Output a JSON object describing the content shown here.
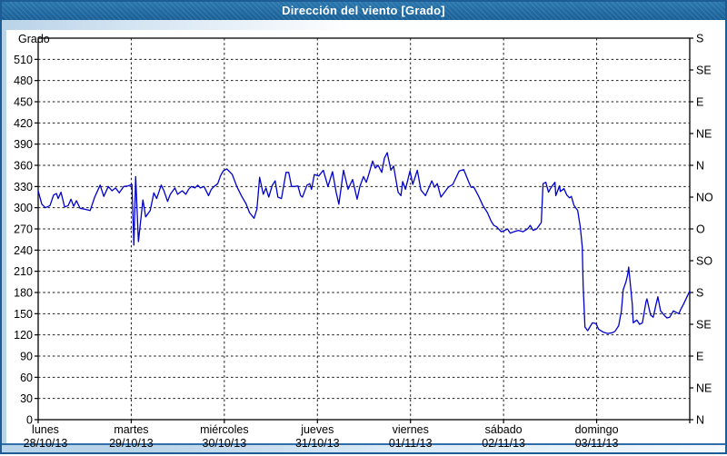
{
  "window": {
    "title": "Dirección del viento [Grado]"
  },
  "colors": {
    "title_bar_top": "#2b77ad",
    "title_bar_bottom": "#1a6097",
    "frame_light_blue": "#b9d3e8",
    "window_border": "#1d5c95",
    "plot_border": "#000000",
    "grid": "#1a1a1a",
    "series_line": "#0000cc"
  },
  "chart_data": {
    "type": "line",
    "title": "Dirección del viento [Grado]",
    "ylabel": "Grado",
    "ylim": [
      0,
      540
    ],
    "y_tick_step": 30,
    "y_left_tick_labels": [
      "0",
      "30",
      "60",
      "90",
      "120",
      "150",
      "180",
      "210",
      "240",
      "270",
      "300",
      "330",
      "360",
      "390",
      "420",
      "450",
      "480",
      "510"
    ],
    "grid": "dashed horizontal every 30°, dashed vertical at each day boundary",
    "legend_position": "none",
    "compass_ticks": [
      {
        "deg": 540,
        "label": "S"
      },
      {
        "deg": 495,
        "label": "SE"
      },
      {
        "deg": 450,
        "label": "E"
      },
      {
        "deg": 405,
        "label": "NE"
      },
      {
        "deg": 360,
        "label": "N"
      },
      {
        "deg": 315,
        "label": "NO"
      },
      {
        "deg": 270,
        "label": "O"
      },
      {
        "deg": 225,
        "label": "SO"
      },
      {
        "deg": 180,
        "label": "S"
      },
      {
        "deg": 135,
        "label": "SE"
      },
      {
        "deg": 90,
        "label": "E"
      },
      {
        "deg": 45,
        "label": "NE"
      },
      {
        "deg": 0,
        "label": "N"
      }
    ],
    "x_days": [
      {
        "name": "lunes",
        "date": "28/10/13"
      },
      {
        "name": "martes",
        "date": "29/10/13"
      },
      {
        "name": "miércoles",
        "date": "30/10/13"
      },
      {
        "name": "jueves",
        "date": "31/10/13"
      },
      {
        "name": "viernes",
        "date": "01/11/13"
      },
      {
        "name": "sábado",
        "date": "02/11/13"
      },
      {
        "name": "domingo",
        "date": "03/11/13"
      }
    ],
    "series": [
      {
        "name": "Dirección del viento",
        "color": "#0000cc",
        "x_unit": "days from lunes 28/10/13 00:00",
        "y_unit": "Grado",
        "points": [
          [
            0,
            324
          ],
          [
            0.039,
            305
          ],
          [
            0.078,
            300
          ],
          [
            0.127,
            303
          ],
          [
            0.166,
            318
          ],
          [
            0.196,
            320
          ],
          [
            0.215,
            313
          ],
          [
            0.245,
            322
          ],
          [
            0.284,
            301
          ],
          [
            0.323,
            303
          ],
          [
            0.352,
            312
          ],
          [
            0.382,
            302
          ],
          [
            0.411,
            310
          ],
          [
            0.45,
            299
          ],
          [
            0.499,
            298
          ],
          [
            0.558,
            296
          ],
          [
            0.607,
            315
          ],
          [
            0.666,
            332
          ],
          [
            0.705,
            316
          ],
          [
            0.754,
            330
          ],
          [
            0.793,
            324
          ],
          [
            0.832,
            328
          ],
          [
            0.871,
            321
          ],
          [
            0.92,
            330
          ],
          [
            0.969,
            331
          ],
          [
            1.008,
            333
          ],
          [
            1.028,
            247
          ],
          [
            1.048,
            344
          ],
          [
            1.077,
            252
          ],
          [
            1.126,
            311
          ],
          [
            1.155,
            287
          ],
          [
            1.204,
            296
          ],
          [
            1.243,
            321
          ],
          [
            1.273,
            313
          ],
          [
            1.322,
            332
          ],
          [
            1.351,
            324
          ],
          [
            1.39,
            309
          ],
          [
            1.42,
            319
          ],
          [
            1.469,
            328
          ],
          [
            1.498,
            319
          ],
          [
            1.547,
            324
          ],
          [
            1.586,
            319
          ],
          [
            1.616,
            326
          ],
          [
            1.645,
            330
          ],
          [
            1.684,
            328
          ],
          [
            1.714,
            332
          ],
          [
            1.743,
            328
          ],
          [
            1.782,
            330
          ],
          [
            1.831,
            317
          ],
          [
            1.86,
            326
          ],
          [
            1.89,
            330
          ],
          [
            1.929,
            334
          ],
          [
            1.958,
            345
          ],
          [
            1.988,
            352
          ],
          [
            2.027,
            355
          ],
          [
            2.085,
            347
          ],
          [
            2.134,
            330
          ],
          [
            2.183,
            317
          ],
          [
            2.232,
            306
          ],
          [
            2.271,
            293
          ],
          [
            2.32,
            285
          ],
          [
            2.35,
            298
          ],
          [
            2.379,
            343
          ],
          [
            2.418,
            319
          ],
          [
            2.448,
            328
          ],
          [
            2.477,
            315
          ],
          [
            2.516,
            332
          ],
          [
            2.546,
            338
          ],
          [
            2.575,
            315
          ],
          [
            2.614,
            313
          ],
          [
            2.663,
            350
          ],
          [
            2.692,
            350
          ],
          [
            2.722,
            330
          ],
          [
            2.761,
            330
          ],
          [
            2.79,
            331
          ],
          [
            2.82,
            317
          ],
          [
            2.839,
            315
          ],
          [
            2.888,
            332
          ],
          [
            2.918,
            334
          ],
          [
            2.937,
            326
          ],
          [
            2.967,
            347
          ],
          [
            3.015,
            345
          ],
          [
            3.064,
            353
          ],
          [
            3.113,
            330
          ],
          [
            3.162,
            351
          ],
          [
            3.201,
            322
          ],
          [
            3.231,
            305
          ],
          [
            3.28,
            353
          ],
          [
            3.329,
            326
          ],
          [
            3.378,
            340
          ],
          [
            3.427,
            312
          ],
          [
            3.456,
            330
          ],
          [
            3.495,
            344
          ],
          [
            3.525,
            336
          ],
          [
            3.554,
            348
          ],
          [
            3.593,
            366
          ],
          [
            3.622,
            356
          ],
          [
            3.652,
            360
          ],
          [
            3.691,
            350
          ],
          [
            3.72,
            370
          ],
          [
            3.75,
            378
          ],
          [
            3.789,
            353
          ],
          [
            3.818,
            359
          ],
          [
            3.867,
            322
          ],
          [
            3.897,
            317
          ],
          [
            3.916,
            337
          ],
          [
            3.946,
            326
          ],
          [
            3.995,
            352
          ],
          [
            4.024,
            333
          ],
          [
            4.073,
            353
          ],
          [
            4.112,
            325
          ],
          [
            4.161,
            317
          ],
          [
            4.229,
            338
          ],
          [
            4.259,
            329
          ],
          [
            4.288,
            334
          ],
          [
            4.327,
            315
          ],
          [
            4.406,
            329
          ],
          [
            4.455,
            333
          ],
          [
            4.523,
            352
          ],
          [
            4.572,
            354
          ],
          [
            4.621,
            338
          ],
          [
            4.65,
            329
          ],
          [
            4.68,
            329
          ],
          [
            4.729,
            317
          ],
          [
            4.778,
            303
          ],
          [
            4.827,
            293
          ],
          [
            4.866,
            281
          ],
          [
            4.895,
            275
          ],
          [
            4.925,
            273
          ],
          [
            4.974,
            266
          ],
          [
            5.013,
            268
          ],
          [
            5.042,
            270
          ],
          [
            5.072,
            264
          ],
          [
            5.111,
            266
          ],
          [
            5.16,
            268
          ],
          [
            5.209,
            266
          ],
          [
            5.258,
            270
          ],
          [
            5.287,
            275
          ],
          [
            5.317,
            268
          ],
          [
            5.356,
            270
          ],
          [
            5.405,
            279
          ],
          [
            5.424,
            334
          ],
          [
            5.454,
            336
          ],
          [
            5.483,
            322
          ],
          [
            5.512,
            329
          ],
          [
            5.552,
            336
          ],
          [
            5.561,
            317
          ],
          [
            5.601,
            331
          ],
          [
            5.61,
            323
          ],
          [
            5.649,
            327
          ],
          [
            5.679,
            318
          ],
          [
            5.708,
            314
          ],
          [
            5.728,
            316
          ],
          [
            5.757,
            303
          ],
          [
            5.796,
            296
          ],
          [
            5.825,
            272
          ],
          [
            5.845,
            245
          ],
          [
            5.855,
            190
          ],
          [
            5.874,
            131
          ],
          [
            5.904,
            126
          ],
          [
            5.953,
            137
          ],
          [
            5.992,
            136
          ],
          [
            6.021,
            128
          ],
          [
            6.07,
            124
          ],
          [
            6.119,
            122
          ],
          [
            6.168,
            123
          ],
          [
            6.197,
            125
          ],
          [
            6.237,
            133
          ],
          [
            6.266,
            154
          ],
          [
            6.285,
            184
          ],
          [
            6.315,
            195
          ],
          [
            6.334,
            206
          ],
          [
            6.344,
            216
          ],
          [
            6.383,
            163
          ],
          [
            6.393,
            137
          ],
          [
            6.432,
            141
          ],
          [
            6.461,
            135
          ],
          [
            6.491,
            137
          ],
          [
            6.53,
            167
          ],
          [
            6.54,
            171
          ],
          [
            6.579,
            148
          ],
          [
            6.608,
            145
          ],
          [
            6.638,
            163
          ],
          [
            6.657,
            174
          ],
          [
            6.687,
            154
          ],
          [
            6.726,
            148
          ],
          [
            6.755,
            144
          ],
          [
            6.785,
            145
          ],
          [
            6.824,
            154
          ],
          [
            6.853,
            152
          ],
          [
            6.883,
            150
          ],
          [
            6.902,
            156
          ],
          [
            6.932,
            163
          ],
          [
            6.971,
            174
          ],
          [
            7,
            182
          ]
        ]
      }
    ]
  }
}
